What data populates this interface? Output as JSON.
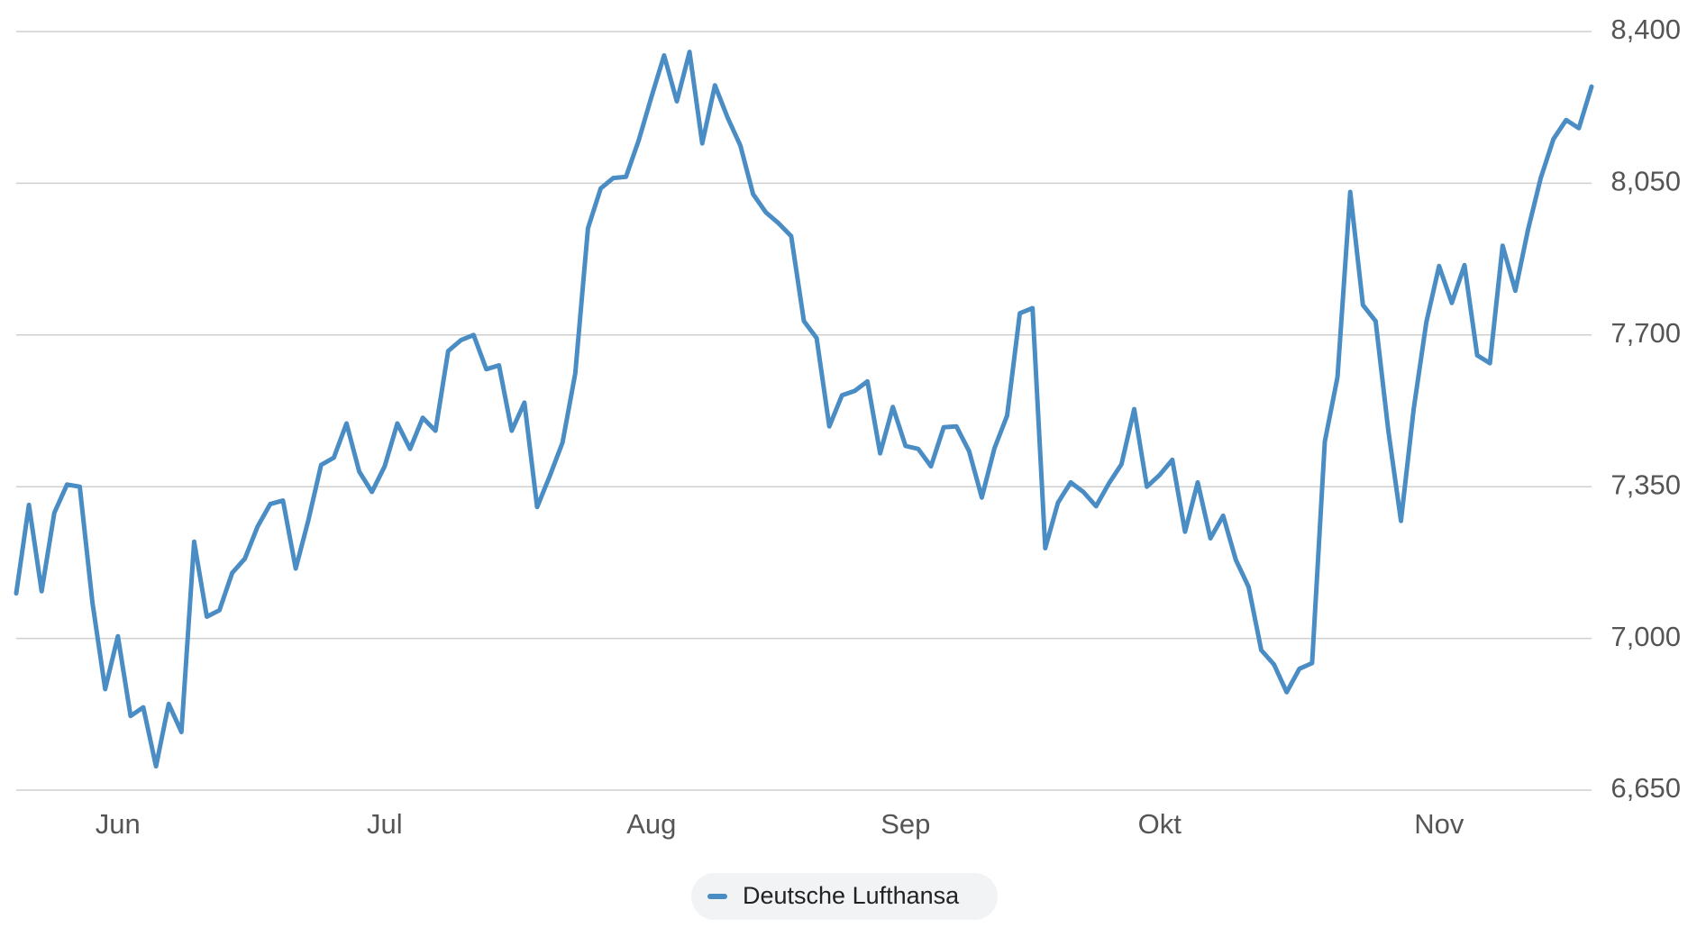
{
  "chart_data": {
    "type": "line",
    "categories": [
      null,
      null,
      null,
      null,
      null,
      null,
      null,
      null,
      "Jun",
      null,
      null,
      null,
      null,
      null,
      null,
      null,
      null,
      null,
      null,
      null,
      null,
      null,
      null,
      null,
      null,
      null,
      null,
      null,
      null,
      "Jul",
      null,
      null,
      null,
      null,
      null,
      null,
      null,
      null,
      null,
      null,
      null,
      null,
      null,
      null,
      null,
      null,
      null,
      null,
      null,
      null,
      "Aug",
      null,
      null,
      null,
      null,
      null,
      null,
      null,
      null,
      null,
      null,
      null,
      null,
      null,
      null,
      null,
      null,
      null,
      null,
      null,
      "Sep",
      null,
      null,
      null,
      null,
      null,
      null,
      null,
      null,
      null,
      null,
      null,
      null,
      null,
      null,
      null,
      null,
      null,
      null,
      null,
      "Okt",
      null,
      null,
      null,
      null,
      null,
      null,
      null,
      null,
      null,
      null,
      null,
      null,
      null,
      null,
      null,
      null,
      null,
      null,
      null,
      null,
      null,
      "Nov",
      null,
      null,
      null,
      null,
      null,
      null,
      null,
      null,
      null,
      null,
      null,
      null
    ],
    "series": [
      {
        "name": "Deutsche Lufthansa",
        "color": "#4a8cc4",
        "values": [
          7104,
          7308,
          7109,
          7290,
          7355,
          7350,
          7082,
          6883,
          7005,
          6821,
          6841,
          6705,
          6849,
          6784,
          7223,
          7050,
          7065,
          7151,
          7184,
          7258,
          7310,
          7318,
          7161,
          7273,
          7400,
          7417,
          7496,
          7385,
          7338,
          7397,
          7496,
          7437,
          7509,
          7479,
          7663,
          7688,
          7700,
          7621,
          7630,
          7479,
          7544,
          7303,
          7375,
          7452,
          7611,
          7946,
          8038,
          8062,
          8065,
          8149,
          8249,
          8345,
          8239,
          8353,
          8142,
          8276,
          8201,
          8137,
          8025,
          7983,
          7958,
          7928,
          7732,
          7693,
          7489,
          7561,
          7571,
          7593,
          7427,
          7534,
          7444,
          7437,
          7397,
          7487,
          7489,
          7432,
          7325,
          7439,
          7514,
          7750,
          7762,
          7208,
          7313,
          7360,
          7338,
          7305,
          7357,
          7402,
          7529,
          7350,
          7377,
          7412,
          7246,
          7360,
          7231,
          7283,
          7181,
          7119,
          6973,
          6940,
          6876,
          6930,
          6943,
          7454,
          7603,
          8030,
          7769,
          7732,
          7479,
          7271,
          7529,
          7730,
          7859,
          7774,
          7861,
          7653,
          7635,
          7906,
          7802,
          7943,
          8062,
          8152,
          8196,
          8177,
          8273
        ]
      }
    ],
    "ylim": [
      6650,
      8400
    ],
    "yticks": [
      {
        "value": 6650,
        "label": "6,650"
      },
      {
        "value": 7000,
        "label": "7,000"
      },
      {
        "value": 7350,
        "label": "7,350"
      },
      {
        "value": 7700,
        "label": "7,700"
      },
      {
        "value": 8050,
        "label": "8,050"
      },
      {
        "value": 8400,
        "label": "8,400"
      }
    ],
    "grid": true
  }
}
